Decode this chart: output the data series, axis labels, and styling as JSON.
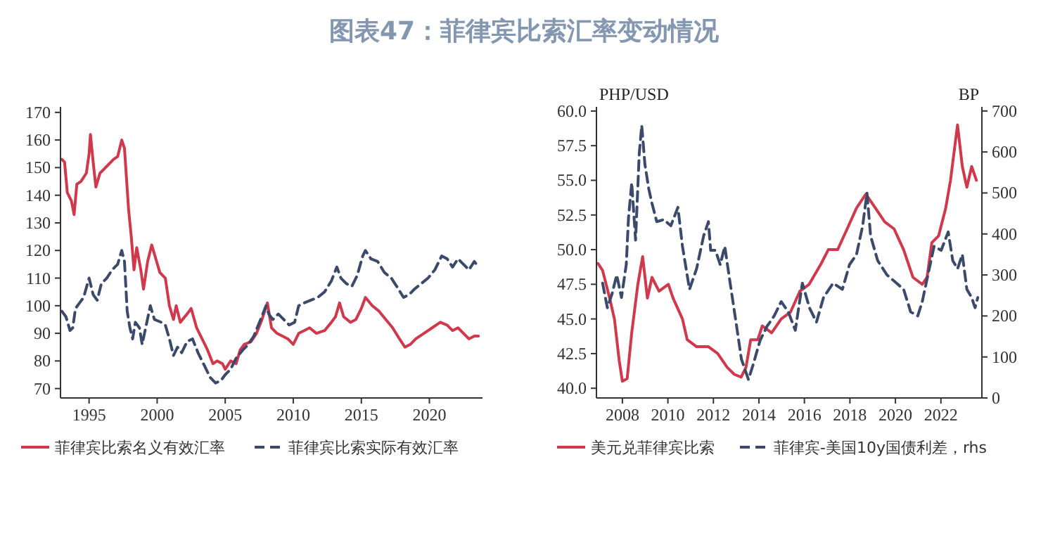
{
  "chart_data": [
    {
      "type": "line",
      "title": "图表47：菲律宾比索汇率变动情况",
      "xlim": [
        1992.9,
        2023.9
      ],
      "xticks": [
        1995,
        2000,
        2005,
        2010,
        2015,
        2020
      ],
      "ylim": [
        66.6,
        172
      ],
      "yticks": [
        70,
        80,
        90,
        100,
        110,
        120,
        130,
        140,
        150,
        160,
        170
      ],
      "grid": false,
      "legend": "bottom",
      "series": [
        {
          "name": "菲律宾比索名义有效汇率",
          "color": "#d0384b",
          "line_style": "solid",
          "x": [
            1993.0,
            1993.2,
            1993.4,
            1993.7,
            1993.9,
            1994.1,
            1994.4,
            1994.8,
            1995.0,
            1995.1,
            1995.3,
            1995.5,
            1995.8,
            1996.0,
            1996.4,
            1996.8,
            1997.1,
            1997.4,
            1997.6,
            1997.9,
            1998.1,
            1998.3,
            1998.5,
            1998.8,
            1999.0,
            1999.3,
            1999.6,
            1999.9,
            2000.2,
            2000.6,
            2000.9,
            2001.2,
            2001.4,
            2001.7,
            2002.2,
            2002.5,
            2002.9,
            2003.3,
            2003.7,
            2004.1,
            2004.4,
            2004.8,
            2005.0,
            2005.4,
            2005.8,
            2006.1,
            2006.4,
            2006.9,
            2007.3,
            2007.7,
            2008.1,
            2008.4,
            2008.8,
            2009.2,
            2009.6,
            2010.0,
            2010.4,
            2010.8,
            2011.2,
            2011.7,
            2012.3,
            2012.8,
            2013.1,
            2013.4,
            2013.7,
            2014.2,
            2014.6,
            2015.0,
            2015.3,
            2015.8,
            2016.3,
            2016.8,
            2017.3,
            2017.8,
            2018.2,
            2018.6,
            2019.0,
            2019.6,
            2020.2,
            2020.8,
            2021.3,
            2021.7,
            2022.1,
            2022.5,
            2022.9,
            2023.3,
            2023.6
          ],
          "values": [
            153,
            152,
            141,
            138,
            133,
            144,
            145,
            148,
            155,
            162,
            152,
            143,
            148,
            149,
            151,
            153,
            154,
            160,
            157,
            135,
            125,
            113,
            121,
            113,
            106,
            116,
            122,
            117,
            112,
            110,
            100,
            95,
            100,
            94,
            97,
            99,
            92,
            88,
            84,
            79,
            80,
            79,
            77,
            80,
            79,
            84,
            86,
            87,
            90,
            95,
            101,
            92,
            90,
            89,
            88,
            86,
            90,
            91,
            92,
            90,
            91,
            94,
            96,
            101,
            96,
            94,
            95,
            99,
            103,
            100,
            98,
            95,
            92,
            88,
            85,
            86,
            88,
            90,
            92,
            94,
            93,
            91,
            92,
            90,
            88,
            89,
            89
          ]
        },
        {
          "name": "菲律宾比索实际有效汇率",
          "color": "#3b4a6b",
          "line_style": "dashed",
          "x": [
            1993.0,
            1993.3,
            1993.6,
            1993.8,
            1994.0,
            1994.3,
            1994.6,
            1995.0,
            1995.3,
            1995.6,
            1995.9,
            1996.3,
            1996.7,
            1997.1,
            1997.4,
            1997.6,
            1997.8,
            1998.0,
            1998.2,
            1998.4,
            1998.7,
            1998.9,
            1999.2,
            1999.5,
            1999.8,
            2000.3,
            2000.6,
            2000.9,
            2001.2,
            2001.5,
            2001.8,
            2002.2,
            2002.6,
            2003.0,
            2003.5,
            2003.9,
            2004.3,
            2004.7,
            2005.0,
            2005.4,
            2005.8,
            2006.3,
            2006.7,
            2007.1,
            2007.6,
            2008.0,
            2008.2,
            2008.5,
            2008.9,
            2009.3,
            2009.7,
            2010.1,
            2010.4,
            2010.8,
            2011.3,
            2011.8,
            2012.3,
            2012.8,
            2013.2,
            2013.5,
            2013.9,
            2014.3,
            2014.7,
            2015.1,
            2015.3,
            2015.7,
            2016.2,
            2016.7,
            2017.2,
            2017.6,
            2018.1,
            2018.5,
            2018.9,
            2019.4,
            2019.9,
            2020.4,
            2020.9,
            2021.3,
            2021.7,
            2022.1,
            2022.5,
            2022.9,
            2023.3,
            2023.6
          ],
          "values": [
            98,
            96,
            91,
            92,
            99,
            101,
            103,
            110,
            104,
            102,
            108,
            110,
            113,
            115,
            120,
            116,
            98,
            92,
            88,
            94,
            92,
            86,
            93,
            100,
            95,
            94,
            93,
            88,
            82,
            85,
            83,
            87,
            88,
            83,
            78,
            74,
            72,
            73,
            75,
            77,
            81,
            84,
            86,
            89,
            95,
            100,
            97,
            95,
            97,
            95,
            93,
            94,
            100,
            101,
            102,
            103,
            105,
            109,
            114,
            110,
            108,
            107,
            111,
            118,
            120,
            117,
            116,
            112,
            110,
            107,
            103,
            104,
            106,
            108,
            110,
            113,
            118,
            117,
            114,
            117,
            115,
            113,
            116,
            114
          ]
        }
      ]
    },
    {
      "type": "line",
      "xlim": [
        2006.86,
        2023.8
      ],
      "xticks": [
        2008,
        2010,
        2012,
        2014,
        2016,
        2018,
        2020,
        2022
      ],
      "ylim": [
        39.3,
        60.3
      ],
      "yticks": [
        {
          "value": 40,
          "label": "40.0"
        },
        {
          "value": 42.5,
          "label": "42.5"
        },
        {
          "value": 45,
          "label": "45.0"
        },
        {
          "value": 47.5,
          "label": "47.5"
        },
        {
          "value": 50,
          "label": "50.0"
        },
        {
          "value": 52.5,
          "label": "52.5"
        },
        {
          "value": 55,
          "label": "55.0"
        },
        {
          "value": 57.5,
          "label": "57.5"
        },
        {
          "value": 60,
          "label": "60.0"
        }
      ],
      "y2lim": [
        0,
        710
      ],
      "y2ticks": [
        0,
        100,
        200,
        300,
        400,
        500,
        600,
        700
      ],
      "ylabel": "PHP/USD",
      "y2label": "BP",
      "grid": false,
      "legend": "bottom",
      "series": [
        {
          "name": "美元兑菲律宾比索",
          "color": "#d0384b",
          "line_style": "solid",
          "x": [
            2006.93,
            2007.13,
            2007.44,
            2007.65,
            2007.86,
            2008.0,
            2008.21,
            2008.41,
            2008.68,
            2008.89,
            2009.1,
            2009.3,
            2009.61,
            2010.02,
            2010.23,
            2010.64,
            2010.85,
            2011.26,
            2011.78,
            2012.19,
            2012.61,
            2012.92,
            2013.22,
            2013.43,
            2013.64,
            2013.95,
            2014.15,
            2014.56,
            2014.98,
            2015.39,
            2015.8,
            2016.21,
            2016.74,
            2017.05,
            2017.46,
            2017.88,
            2018.29,
            2018.7,
            2019.12,
            2019.53,
            2019.94,
            2020.36,
            2020.77,
            2021.18,
            2021.39,
            2021.6,
            2021.9,
            2022.21,
            2022.42,
            2022.73,
            2022.94,
            2023.14,
            2023.35,
            2023.56
          ],
          "values": [
            49,
            48.5,
            46.5,
            45,
            42,
            40.5,
            40.7,
            44,
            47.5,
            49.5,
            46.5,
            48,
            47,
            47.5,
            46.5,
            45,
            43.5,
            43,
            43,
            42.5,
            41.5,
            41,
            40.8,
            41.5,
            43.5,
            43.5,
            44.5,
            44,
            45,
            45.5,
            47,
            47.5,
            49,
            50,
            50,
            51.5,
            53,
            54,
            53,
            52,
            51.5,
            50,
            48,
            47.5,
            48,
            50.5,
            51,
            53,
            55,
            59,
            56,
            54.5,
            56,
            55
          ]
        },
        {
          "name": "菲律宾-美国10y国债利差，rhs",
          "color": "#3b4a6b",
          "line_style": "dashed",
          "axis": "y2",
          "x": [
            2007.13,
            2007.34,
            2007.55,
            2007.75,
            2007.96,
            2008.17,
            2008.27,
            2008.41,
            2008.58,
            2008.74,
            2008.85,
            2008.99,
            2009.16,
            2009.3,
            2009.51,
            2009.82,
            2010.13,
            2010.44,
            2010.64,
            2010.95,
            2011.26,
            2011.57,
            2011.78,
            2011.88,
            2012.09,
            2012.3,
            2012.5,
            2012.71,
            2013.02,
            2013.23,
            2013.54,
            2013.74,
            2014.05,
            2014.36,
            2014.67,
            2014.98,
            2015.29,
            2015.6,
            2015.91,
            2016.22,
            2016.53,
            2016.84,
            2017.26,
            2017.67,
            2017.98,
            2018.29,
            2018.56,
            2018.75,
            2018.91,
            2019.22,
            2019.63,
            2020.05,
            2020.36,
            2020.67,
            2020.98,
            2021.18,
            2021.39,
            2021.7,
            2022.01,
            2022.32,
            2022.52,
            2022.73,
            2022.94,
            2023.14,
            2023.35,
            2023.5,
            2023.62
          ],
          "values": [
            280,
            220,
            255,
            300,
            245,
            325,
            440,
            525,
            385,
            595,
            665,
            570,
            510,
            475,
            430,
            435,
            420,
            465,
            370,
            265,
            315,
            395,
            430,
            360,
            360,
            325,
            370,
            290,
            175,
            95,
            45,
            80,
            140,
            175,
            200,
            235,
            210,
            165,
            280,
            220,
            185,
            245,
            280,
            265,
            325,
            350,
            420,
            500,
            395,
            335,
            300,
            280,
            265,
            210,
            200,
            235,
            290,
            370,
            360,
            405,
            335,
            315,
            350,
            265,
            245,
            220,
            245
          ]
        }
      ]
    }
  ]
}
